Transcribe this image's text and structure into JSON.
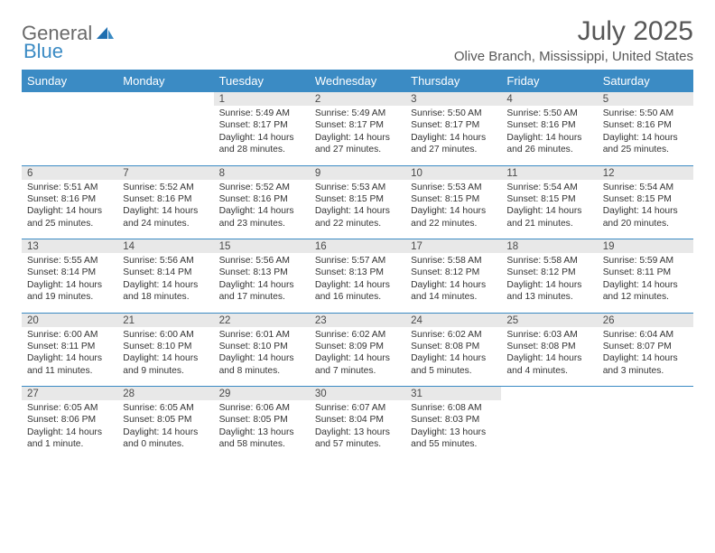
{
  "brand": {
    "part1": "General",
    "part2": "Blue"
  },
  "title": "July 2025",
  "location": "Olive Branch, Mississippi, United States",
  "colors": {
    "header_bg": "#3b8bc4",
    "header_text": "#ffffff",
    "daynum_bg": "#e8e8e8",
    "body_text": "#333333",
    "title_text": "#575757"
  },
  "dayNames": [
    "Sunday",
    "Monday",
    "Tuesday",
    "Wednesday",
    "Thursday",
    "Friday",
    "Saturday"
  ],
  "weeks": [
    [
      null,
      null,
      {
        "n": "1",
        "sr": "5:49 AM",
        "ss": "8:17 PM",
        "dl": "14 hours and 28 minutes."
      },
      {
        "n": "2",
        "sr": "5:49 AM",
        "ss": "8:17 PM",
        "dl": "14 hours and 27 minutes."
      },
      {
        "n": "3",
        "sr": "5:50 AM",
        "ss": "8:17 PM",
        "dl": "14 hours and 27 minutes."
      },
      {
        "n": "4",
        "sr": "5:50 AM",
        "ss": "8:16 PM",
        "dl": "14 hours and 26 minutes."
      },
      {
        "n": "5",
        "sr": "5:50 AM",
        "ss": "8:16 PM",
        "dl": "14 hours and 25 minutes."
      }
    ],
    [
      {
        "n": "6",
        "sr": "5:51 AM",
        "ss": "8:16 PM",
        "dl": "14 hours and 25 minutes."
      },
      {
        "n": "7",
        "sr": "5:52 AM",
        "ss": "8:16 PM",
        "dl": "14 hours and 24 minutes."
      },
      {
        "n": "8",
        "sr": "5:52 AM",
        "ss": "8:16 PM",
        "dl": "14 hours and 23 minutes."
      },
      {
        "n": "9",
        "sr": "5:53 AM",
        "ss": "8:15 PM",
        "dl": "14 hours and 22 minutes."
      },
      {
        "n": "10",
        "sr": "5:53 AM",
        "ss": "8:15 PM",
        "dl": "14 hours and 22 minutes."
      },
      {
        "n": "11",
        "sr": "5:54 AM",
        "ss": "8:15 PM",
        "dl": "14 hours and 21 minutes."
      },
      {
        "n": "12",
        "sr": "5:54 AM",
        "ss": "8:15 PM",
        "dl": "14 hours and 20 minutes."
      }
    ],
    [
      {
        "n": "13",
        "sr": "5:55 AM",
        "ss": "8:14 PM",
        "dl": "14 hours and 19 minutes."
      },
      {
        "n": "14",
        "sr": "5:56 AM",
        "ss": "8:14 PM",
        "dl": "14 hours and 18 minutes."
      },
      {
        "n": "15",
        "sr": "5:56 AM",
        "ss": "8:13 PM",
        "dl": "14 hours and 17 minutes."
      },
      {
        "n": "16",
        "sr": "5:57 AM",
        "ss": "8:13 PM",
        "dl": "14 hours and 16 minutes."
      },
      {
        "n": "17",
        "sr": "5:58 AM",
        "ss": "8:12 PM",
        "dl": "14 hours and 14 minutes."
      },
      {
        "n": "18",
        "sr": "5:58 AM",
        "ss": "8:12 PM",
        "dl": "14 hours and 13 minutes."
      },
      {
        "n": "19",
        "sr": "5:59 AM",
        "ss": "8:11 PM",
        "dl": "14 hours and 12 minutes."
      }
    ],
    [
      {
        "n": "20",
        "sr": "6:00 AM",
        "ss": "8:11 PM",
        "dl": "14 hours and 11 minutes."
      },
      {
        "n": "21",
        "sr": "6:00 AM",
        "ss": "8:10 PM",
        "dl": "14 hours and 9 minutes."
      },
      {
        "n": "22",
        "sr": "6:01 AM",
        "ss": "8:10 PM",
        "dl": "14 hours and 8 minutes."
      },
      {
        "n": "23",
        "sr": "6:02 AM",
        "ss": "8:09 PM",
        "dl": "14 hours and 7 minutes."
      },
      {
        "n": "24",
        "sr": "6:02 AM",
        "ss": "8:08 PM",
        "dl": "14 hours and 5 minutes."
      },
      {
        "n": "25",
        "sr": "6:03 AM",
        "ss": "8:08 PM",
        "dl": "14 hours and 4 minutes."
      },
      {
        "n": "26",
        "sr": "6:04 AM",
        "ss": "8:07 PM",
        "dl": "14 hours and 3 minutes."
      }
    ],
    [
      {
        "n": "27",
        "sr": "6:05 AM",
        "ss": "8:06 PM",
        "dl": "14 hours and 1 minute."
      },
      {
        "n": "28",
        "sr": "6:05 AM",
        "ss": "8:05 PM",
        "dl": "14 hours and 0 minutes."
      },
      {
        "n": "29",
        "sr": "6:06 AM",
        "ss": "8:05 PM",
        "dl": "13 hours and 58 minutes."
      },
      {
        "n": "30",
        "sr": "6:07 AM",
        "ss": "8:04 PM",
        "dl": "13 hours and 57 minutes."
      },
      {
        "n": "31",
        "sr": "6:08 AM",
        "ss": "8:03 PM",
        "dl": "13 hours and 55 minutes."
      },
      null,
      null
    ]
  ],
  "labels": {
    "sunrise": "Sunrise: ",
    "sunset": "Sunset: ",
    "daylight": "Daylight: "
  }
}
